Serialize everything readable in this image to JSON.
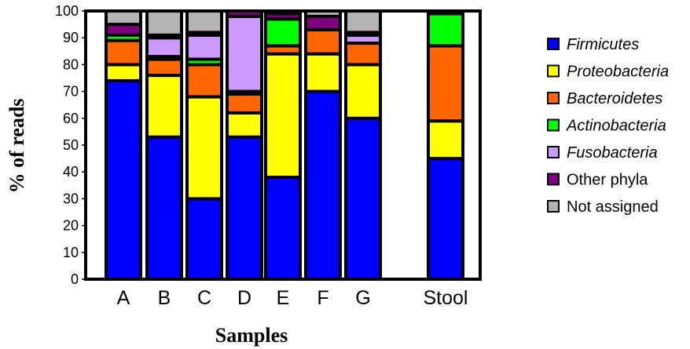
{
  "chart_data": {
    "type": "bar",
    "stacked": true,
    "title": "",
    "xlabel": "Samples",
    "ylabel": "% of reads",
    "ylim": [
      0,
      100
    ],
    "yticks": [
      0,
      10,
      20,
      30,
      40,
      50,
      60,
      70,
      80,
      90,
      100
    ],
    "categories": [
      "A",
      "B",
      "C",
      "D",
      "E",
      "F",
      "G",
      "Stool"
    ],
    "legend_position": "right",
    "grid": false,
    "series": [
      {
        "name": "Firmicutes",
        "italic": true,
        "color": "#0000ff",
        "values": [
          74,
          53,
          30,
          53,
          38,
          70,
          60,
          45
        ]
      },
      {
        "name": "Proteobacteria",
        "italic": true,
        "color": "#ffff00",
        "values": [
          6,
          23,
          38,
          9,
          46,
          14,
          20,
          14
        ]
      },
      {
        "name": "Bacteroidetes",
        "italic": true,
        "color": "#ff6600",
        "values": [
          9,
          6,
          12,
          7,
          3,
          9,
          8,
          28
        ]
      },
      {
        "name": "Actinobacteria",
        "italic": true,
        "color": "#00ff00",
        "values": [
          2,
          1,
          2,
          1,
          10,
          0,
          0,
          12
        ]
      },
      {
        "name": "Fusobacteria",
        "italic": true,
        "color": "#cc99ff",
        "values": [
          0,
          7,
          9,
          28,
          0,
          0,
          3,
          0
        ]
      },
      {
        "name": "Other phyla",
        "italic": false,
        "color": "#800080",
        "values": [
          4,
          1,
          1,
          2,
          2,
          5,
          1,
          1
        ]
      },
      {
        "name": "Not assigned",
        "italic": false,
        "color": "#b3b3b3",
        "values": [
          5,
          9,
          8,
          0,
          1,
          2,
          8,
          0
        ]
      }
    ]
  }
}
